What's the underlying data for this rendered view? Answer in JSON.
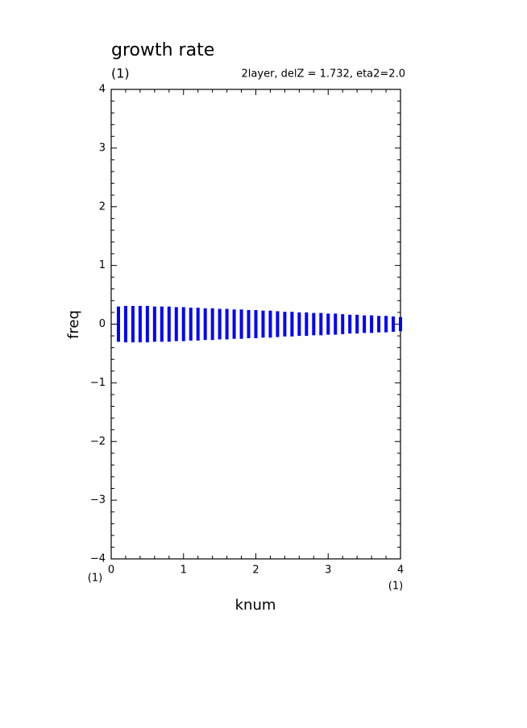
{
  "chart_data": {
    "type": "range",
    "title": "growth rate",
    "panel_label": "(1)",
    "subtitle": "2layer, delZ = 1.732, eta2=2.0",
    "xlabel": "knum",
    "ylabel": "freq",
    "x_axis_notes": [
      "(1)",
      "(1)"
    ],
    "color": "#0000ff",
    "x": [
      0.1,
      0.2,
      0.3,
      0.4,
      0.5,
      0.6,
      0.7,
      0.8,
      0.9,
      1.0,
      1.1,
      1.2,
      1.3,
      1.4,
      1.5,
      1.6,
      1.7,
      1.8,
      1.9,
      2.0,
      2.1,
      2.2,
      2.3,
      2.4,
      2.5,
      2.6,
      2.7,
      2.8,
      2.9,
      3.0,
      3.1,
      3.2,
      3.3,
      3.4,
      3.5,
      3.6,
      3.7,
      3.8,
      3.9,
      4.0
    ],
    "high": [
      0.3,
      0.31,
      0.31,
      0.31,
      0.31,
      0.3,
      0.3,
      0.3,
      0.29,
      0.29,
      0.28,
      0.28,
      0.27,
      0.27,
      0.26,
      0.26,
      0.25,
      0.25,
      0.24,
      0.24,
      0.23,
      0.23,
      0.22,
      0.21,
      0.21,
      0.2,
      0.2,
      0.19,
      0.19,
      0.18,
      0.18,
      0.17,
      0.16,
      0.16,
      0.15,
      0.15,
      0.14,
      0.14,
      0.13,
      0.12
    ],
    "low": [
      -0.3,
      -0.31,
      -0.31,
      -0.31,
      -0.31,
      -0.3,
      -0.3,
      -0.3,
      -0.29,
      -0.29,
      -0.28,
      -0.28,
      -0.27,
      -0.27,
      -0.26,
      -0.26,
      -0.25,
      -0.25,
      -0.24,
      -0.24,
      -0.23,
      -0.23,
      -0.22,
      -0.21,
      -0.21,
      -0.2,
      -0.2,
      -0.19,
      -0.19,
      -0.18,
      -0.18,
      -0.17,
      -0.16,
      -0.16,
      -0.15,
      -0.15,
      -0.14,
      -0.14,
      -0.13,
      -0.12
    ],
    "xlim": [
      0,
      4
    ],
    "xticks": [
      0,
      1,
      2,
      3,
      4
    ],
    "ylim": [
      -4,
      4
    ],
    "yticks": [
      {
        "value": -4,
        "label": "−4"
      },
      {
        "value": -3,
        "label": "−3"
      },
      {
        "value": -2,
        "label": "−2"
      },
      {
        "value": -1,
        "label": "−1"
      },
      0,
      1,
      2,
      3,
      4
    ]
  }
}
